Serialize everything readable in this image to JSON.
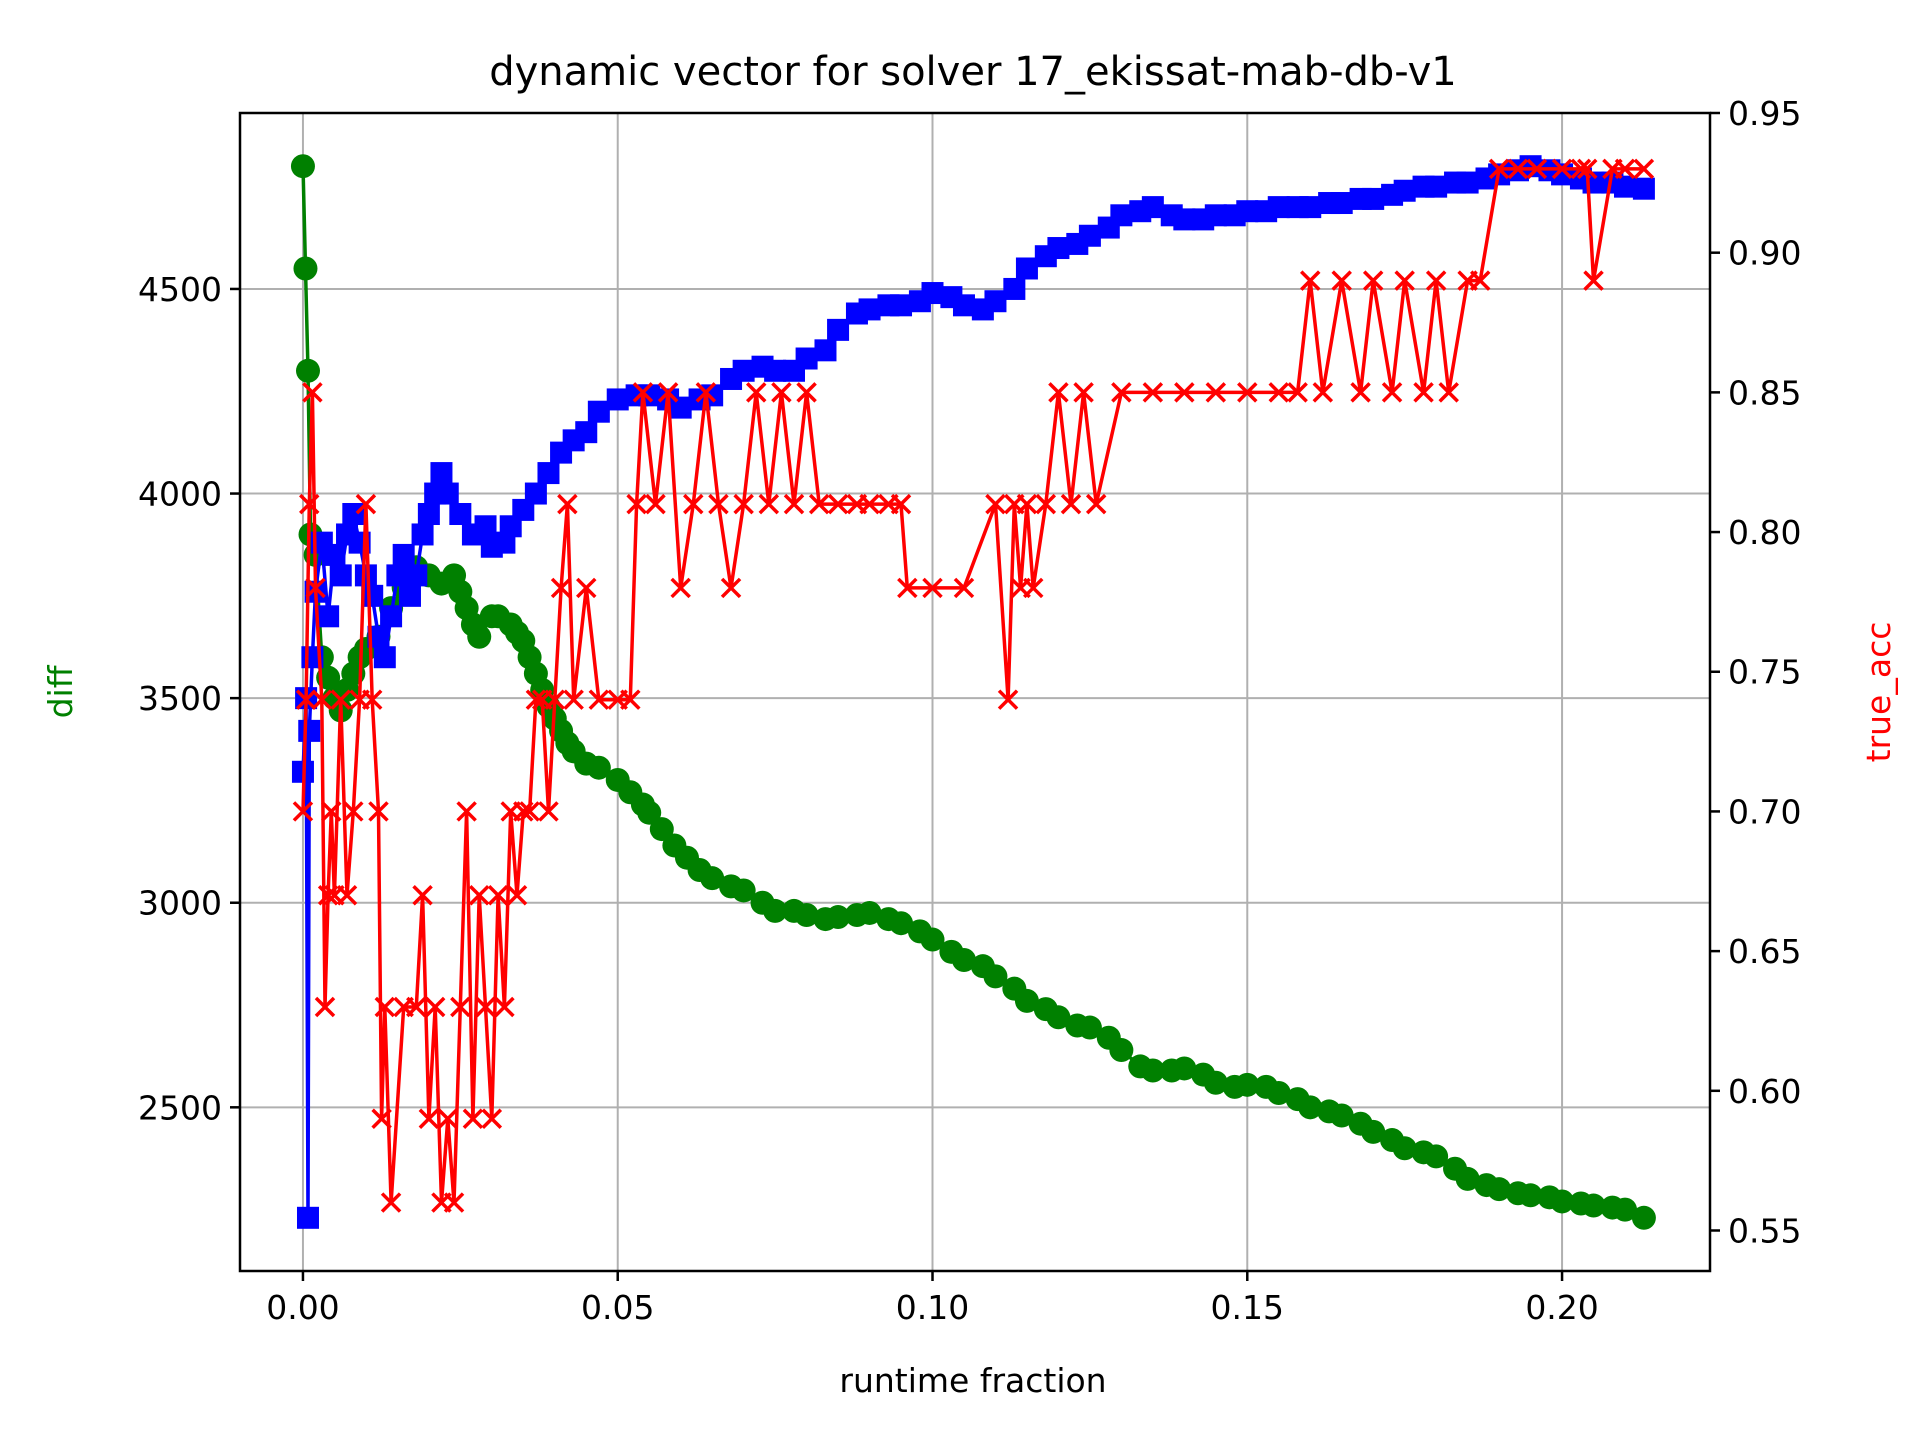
{
  "chart_data": {
    "type": "line",
    "title": "dynamic vector for solver 17_ekissat-mab-db-v1",
    "xlabel": "runtime fraction",
    "ylabel_left": "diff",
    "ylabel_right": "true_acc",
    "xlim": [
      -0.01,
      0.2235
    ],
    "ylim_left": [
      2100,
      4930
    ],
    "ylim_right": [
      0.5355,
      0.95
    ],
    "x_ticks": [
      0.0,
      0.05,
      0.1,
      0.15,
      0.2
    ],
    "x_tick_labels": [
      "0.00",
      "0.05",
      "0.10",
      "0.15",
      "0.20"
    ],
    "y_left_ticks": [
      2500,
      3000,
      3500,
      4000,
      4500
    ],
    "y_left_tick_labels": [
      "2500",
      "3000",
      "3500",
      "4000",
      "4500"
    ],
    "y_right_ticks": [
      0.55,
      0.6,
      0.65,
      0.7,
      0.75,
      0.8,
      0.85,
      0.9,
      0.95
    ],
    "y_right_tick_labels": [
      "0.55",
      "0.60",
      "0.65",
      "0.70",
      "0.75",
      "0.80",
      "0.85",
      "0.90",
      "0.95"
    ],
    "grid": true,
    "colors": {
      "diff": "#008000",
      "blue_series": "#0000ff",
      "true_acc": "#ff0000",
      "ylabel_left": "#008000",
      "ylabel_right": "#ff0000"
    },
    "series": [
      {
        "axis": "left",
        "color": "#008000",
        "marker": "circle",
        "x": [
          0.0,
          0.0004,
          0.0008,
          0.0012,
          0.002,
          0.003,
          0.004,
          0.005,
          0.006,
          0.007,
          0.008,
          0.009,
          0.01,
          0.012,
          0.014,
          0.016,
          0.018,
          0.02,
          0.022,
          0.024,
          0.025,
          0.026,
          0.027,
          0.028,
          0.03,
          0.031,
          0.033,
          0.034,
          0.035,
          0.036,
          0.037,
          0.038,
          0.039,
          0.04,
          0.041,
          0.042,
          0.043,
          0.045,
          0.047,
          0.05,
          0.052,
          0.054,
          0.055,
          0.057,
          0.059,
          0.061,
          0.063,
          0.065,
          0.068,
          0.07,
          0.073,
          0.075,
          0.078,
          0.08,
          0.083,
          0.085,
          0.088,
          0.09,
          0.093,
          0.095,
          0.098,
          0.1,
          0.103,
          0.105,
          0.108,
          0.11,
          0.113,
          0.115,
          0.118,
          0.12,
          0.123,
          0.125,
          0.128,
          0.13,
          0.133,
          0.135,
          0.138,
          0.14,
          0.143,
          0.145,
          0.148,
          0.15,
          0.153,
          0.155,
          0.158,
          0.16,
          0.163,
          0.165,
          0.168,
          0.17,
          0.173,
          0.175,
          0.178,
          0.18,
          0.183,
          0.185,
          0.188,
          0.19,
          0.193,
          0.195,
          0.198,
          0.2,
          0.203,
          0.205,
          0.208,
          0.21,
          0.213
        ],
        "y": [
          4800,
          4550,
          4300,
          3900,
          3850,
          3600,
          3550,
          3500,
          3470,
          3520,
          3560,
          3600,
          3620,
          3650,
          3720,
          3770,
          3820,
          3800,
          3780,
          3800,
          3760,
          3720,
          3680,
          3650,
          3700,
          3700,
          3680,
          3660,
          3640,
          3600,
          3560,
          3520,
          3480,
          3450,
          3420,
          3390,
          3370,
          3340,
          3330,
          3300,
          3270,
          3240,
          3220,
          3180,
          3140,
          3110,
          3080,
          3060,
          3040,
          3030,
          3000,
          2980,
          2980,
          2970,
          2960,
          2965,
          2970,
          2975,
          2960,
          2950,
          2930,
          2910,
          2880,
          2860,
          2845,
          2820,
          2790,
          2760,
          2740,
          2720,
          2700,
          2695,
          2670,
          2640,
          2600,
          2590,
          2590,
          2595,
          2580,
          2560,
          2550,
          2555,
          2550,
          2535,
          2520,
          2500,
          2490,
          2480,
          2460,
          2440,
          2420,
          2400,
          2390,
          2380,
          2350,
          2325,
          2310,
          2300,
          2290,
          2285,
          2280,
          2270,
          2265,
          2260,
          2255,
          2250,
          2230
        ]
      },
      {
        "axis": "left",
        "color": "#0000ff",
        "marker": "square",
        "x": [
          0.0,
          0.0005,
          0.0008,
          0.001,
          0.0015,
          0.002,
          0.003,
          0.004,
          0.005,
          0.006,
          0.007,
          0.008,
          0.009,
          0.01,
          0.011,
          0.012,
          0.013,
          0.014,
          0.015,
          0.016,
          0.017,
          0.018,
          0.019,
          0.02,
          0.021,
          0.022,
          0.023,
          0.025,
          0.027,
          0.029,
          0.03,
          0.032,
          0.033,
          0.035,
          0.037,
          0.039,
          0.041,
          0.043,
          0.045,
          0.047,
          0.05,
          0.053,
          0.055,
          0.058,
          0.06,
          0.063,
          0.065,
          0.068,
          0.07,
          0.073,
          0.075,
          0.078,
          0.08,
          0.083,
          0.085,
          0.088,
          0.09,
          0.093,
          0.095,
          0.098,
          0.1,
          0.103,
          0.105,
          0.108,
          0.11,
          0.113,
          0.115,
          0.118,
          0.12,
          0.123,
          0.125,
          0.128,
          0.13,
          0.133,
          0.135,
          0.138,
          0.14,
          0.143,
          0.145,
          0.148,
          0.15,
          0.153,
          0.155,
          0.158,
          0.16,
          0.163,
          0.165,
          0.168,
          0.17,
          0.173,
          0.175,
          0.178,
          0.18,
          0.183,
          0.185,
          0.188,
          0.19,
          0.193,
          0.195,
          0.198,
          0.2,
          0.203,
          0.205,
          0.208,
          0.21,
          0.213
        ],
        "y": [
          3320,
          3500,
          2230,
          3420,
          3600,
          3760,
          3880,
          3700,
          3850,
          3800,
          3900,
          3950,
          3880,
          3800,
          3750,
          3650,
          3600,
          3700,
          3800,
          3850,
          3750,
          3800,
          3900,
          3950,
          4000,
          4050,
          4000,
          3950,
          3900,
          3920,
          3870,
          3880,
          3920,
          3960,
          4000,
          4050,
          4100,
          4130,
          4150,
          4200,
          4230,
          4240,
          4240,
          4230,
          4210,
          4230,
          4240,
          4280,
          4300,
          4310,
          4300,
          4300,
          4330,
          4350,
          4400,
          4440,
          4450,
          4460,
          4460,
          4470,
          4490,
          4480,
          4460,
          4450,
          4470,
          4500,
          4550,
          4580,
          4600,
          4610,
          4630,
          4650,
          4680,
          4690,
          4700,
          4680,
          4670,
          4670,
          4680,
          4680,
          4690,
          4690,
          4700,
          4700,
          4700,
          4710,
          4710,
          4720,
          4720,
          4730,
          4740,
          4750,
          4750,
          4760,
          4760,
          4770,
          4780,
          4790,
          4800,
          4790,
          4780,
          4770,
          4760,
          4760,
          4750,
          4745
        ]
      },
      {
        "axis": "right",
        "color": "#ff0000",
        "marker": "x",
        "x": [
          0.0,
          0.0005,
          0.001,
          0.0015,
          0.002,
          0.003,
          0.0035,
          0.004,
          0.0045,
          0.005,
          0.006,
          0.007,
          0.008,
          0.009,
          0.01,
          0.011,
          0.012,
          0.0125,
          0.013,
          0.014,
          0.016,
          0.018,
          0.019,
          0.02,
          0.021,
          0.022,
          0.023,
          0.024,
          0.025,
          0.026,
          0.027,
          0.028,
          0.029,
          0.03,
          0.031,
          0.032,
          0.033,
          0.034,
          0.035,
          0.036,
          0.037,
          0.038,
          0.039,
          0.04,
          0.041,
          0.042,
          0.043,
          0.045,
          0.047,
          0.05,
          0.052,
          0.053,
          0.054,
          0.056,
          0.058,
          0.06,
          0.062,
          0.064,
          0.066,
          0.068,
          0.07,
          0.072,
          0.074,
          0.076,
          0.078,
          0.08,
          0.082,
          0.085,
          0.088,
          0.09,
          0.093,
          0.095,
          0.096,
          0.1,
          0.105,
          0.11,
          0.112,
          0.113,
          0.114,
          0.115,
          0.116,
          0.118,
          0.12,
          0.122,
          0.124,
          0.126,
          0.13,
          0.135,
          0.14,
          0.145,
          0.15,
          0.155,
          0.158,
          0.16,
          0.162,
          0.165,
          0.168,
          0.17,
          0.173,
          0.175,
          0.178,
          0.18,
          0.182,
          0.185,
          0.187,
          0.19,
          0.193,
          0.196,
          0.2,
          0.203,
          0.204,
          0.205,
          0.208,
          0.21,
          0.213
        ],
        "y": [
          0.7,
          0.74,
          0.81,
          0.85,
          0.78,
          0.74,
          0.63,
          0.67,
          0.7,
          0.67,
          0.74,
          0.67,
          0.7,
          0.74,
          0.81,
          0.74,
          0.7,
          0.59,
          0.63,
          0.56,
          0.63,
          0.63,
          0.67,
          0.59,
          0.63,
          0.56,
          0.59,
          0.56,
          0.63,
          0.7,
          0.59,
          0.67,
          0.63,
          0.59,
          0.67,
          0.63,
          0.7,
          0.67,
          0.7,
          0.7,
          0.74,
          0.74,
          0.7,
          0.74,
          0.78,
          0.81,
          0.74,
          0.78,
          0.74,
          0.74,
          0.74,
          0.81,
          0.85,
          0.81,
          0.85,
          0.78,
          0.81,
          0.85,
          0.81,
          0.78,
          0.81,
          0.85,
          0.81,
          0.85,
          0.81,
          0.85,
          0.81,
          0.81,
          0.81,
          0.81,
          0.81,
          0.81,
          0.78,
          0.78,
          0.78,
          0.81,
          0.74,
          0.81,
          0.78,
          0.81,
          0.78,
          0.81,
          0.85,
          0.81,
          0.85,
          0.81,
          0.85,
          0.85,
          0.85,
          0.85,
          0.85,
          0.85,
          0.85,
          0.89,
          0.85,
          0.89,
          0.85,
          0.89,
          0.85,
          0.89,
          0.85,
          0.89,
          0.85,
          0.89,
          0.89,
          0.93,
          0.93,
          0.93,
          0.93,
          0.93,
          0.93,
          0.89,
          0.93,
          0.93,
          0.93
        ]
      }
    ]
  }
}
